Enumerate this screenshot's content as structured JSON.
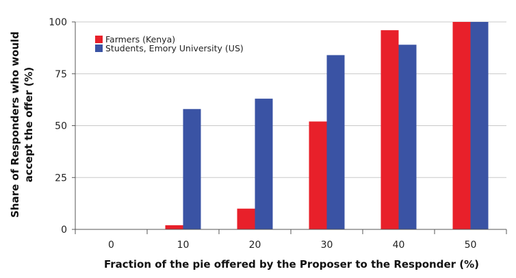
{
  "chart_data": {
    "type": "bar",
    "categories": [
      "0",
      "10",
      "20",
      "30",
      "40",
      "50"
    ],
    "series": [
      {
        "name": "Farmers (Kenya)",
        "color": "#e8202a",
        "values": [
          0,
          2,
          10,
          52,
          96,
          100
        ]
      },
      {
        "name": "Students, Emory University (US)",
        "color": "#3a53a4",
        "values": [
          0,
          58,
          63,
          84,
          89,
          100
        ]
      }
    ],
    "xlabel": "Fraction of the pie offered by the Proposer to the Responder (%)",
    "ylabel": [
      "Share of Responders who would",
      "accept the offer (%)"
    ],
    "ylim": [
      0,
      100
    ],
    "yticks": [
      0,
      25,
      50,
      75,
      100
    ],
    "grid": true,
    "legend_position": "top-left"
  }
}
